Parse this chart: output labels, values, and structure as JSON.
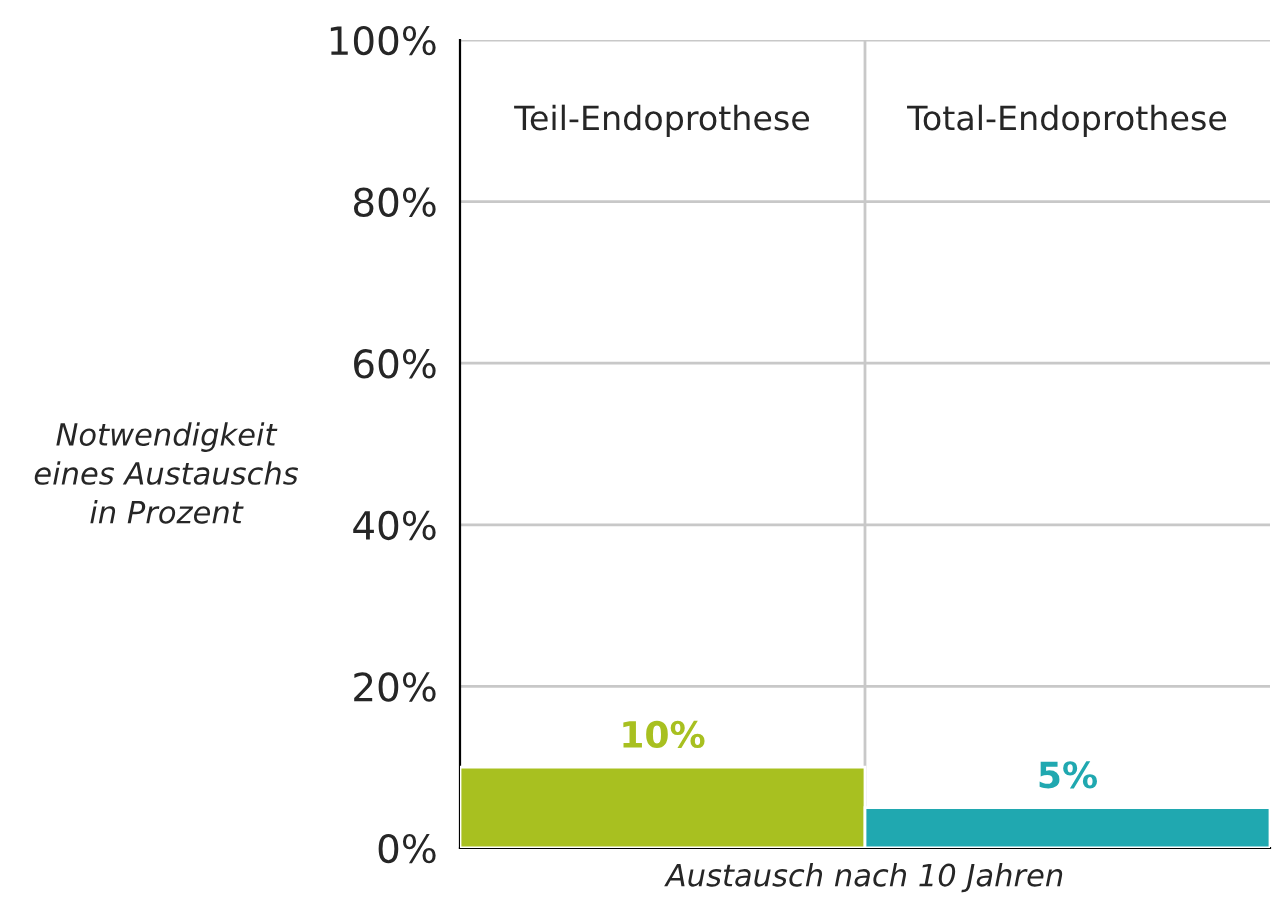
{
  "chart_data": {
    "type": "bar",
    "categories": [
      "Teil-Endoprothese",
      "Total-Endoprothese"
    ],
    "values": [
      10,
      5
    ],
    "colors": [
      "#a8c020",
      "#20a8b0"
    ],
    "value_labels": [
      "10%",
      "5%"
    ],
    "ylabel": "Notwendigkeit\neines Austauschs\nin Prozent",
    "xlabel": "Austausch nach 10 Jahren",
    "ylim": [
      0,
      100
    ],
    "yticks": [
      {
        "value": 0,
        "label": "0%"
      },
      {
        "value": 20,
        "label": "20%"
      },
      {
        "value": 40,
        "label": "40%"
      },
      {
        "value": 60,
        "label": "60%"
      },
      {
        "value": 80,
        "label": "80%"
      },
      {
        "value": 100,
        "label": "100%"
      }
    ],
    "grid": true,
    "legend": false
  }
}
